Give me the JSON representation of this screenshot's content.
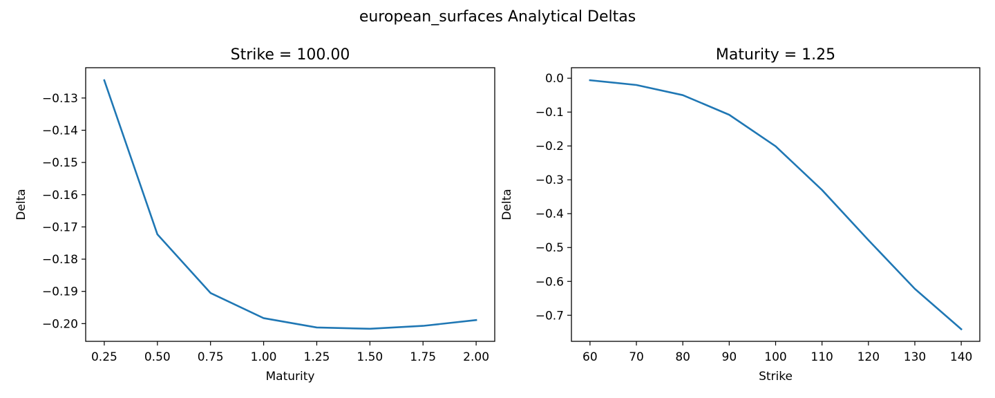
{
  "figure": {
    "suptitle": "european_surfaces Analytical Deltas"
  },
  "colors": {
    "line": "#1f77b4",
    "axes": "#000000",
    "background": "#ffffff"
  },
  "chart_data": [
    {
      "type": "line",
      "title": "Strike = 100.00",
      "xlabel": "Maturity",
      "ylabel": "Delta",
      "x": [
        0.25,
        0.5,
        0.75,
        1.0,
        1.25,
        1.5,
        1.75,
        2.0
      ],
      "series": [
        {
          "values": [
            -0.1245,
            -0.1723,
            -0.1905,
            -0.1983,
            -0.2012,
            -0.2016,
            -0.2007,
            -0.1989
          ]
        }
      ],
      "xlim": [
        0.1625,
        2.0875
      ],
      "ylim": [
        -0.2055,
        -0.1206
      ],
      "xticks": [
        0.25,
        0.5,
        0.75,
        1.0,
        1.25,
        1.5,
        1.75,
        2.0
      ],
      "xtick_labels": [
        "0.25",
        "0.50",
        "0.75",
        "1.00",
        "1.25",
        "1.50",
        "1.75",
        "2.00"
      ],
      "yticks": [
        -0.13,
        -0.14,
        -0.15,
        -0.16,
        -0.17,
        -0.18,
        -0.19,
        -0.2
      ],
      "ytick_labels": [
        "−0.13",
        "−0.14",
        "−0.15",
        "−0.16",
        "−0.17",
        "−0.18",
        "−0.19",
        "−0.20"
      ],
      "grid": false,
      "legend": "none"
    },
    {
      "type": "line",
      "title": "Maturity = 1.25",
      "xlabel": "Strike",
      "ylabel": "Delta",
      "x": [
        60,
        70,
        80,
        90,
        100,
        110,
        120,
        130,
        140
      ],
      "series": [
        {
          "values": [
            -0.006,
            -0.02,
            -0.05,
            -0.108,
            -0.201,
            -0.33,
            -0.478,
            -0.622,
            -0.741
          ]
        }
      ],
      "xlim": [
        56,
        144
      ],
      "ylim": [
        -0.777,
        0.031
      ],
      "xticks": [
        60,
        70,
        80,
        90,
        100,
        110,
        120,
        130,
        140
      ],
      "xtick_labels": [
        "60",
        "70",
        "80",
        "90",
        "100",
        "110",
        "120",
        "130",
        "140"
      ],
      "yticks": [
        0.0,
        -0.1,
        -0.2,
        -0.3,
        -0.4,
        -0.5,
        -0.6,
        -0.7
      ],
      "ytick_labels": [
        "0.0",
        "−0.1",
        "−0.2",
        "−0.3",
        "−0.4",
        "−0.5",
        "−0.6",
        "−0.7"
      ],
      "grid": false,
      "legend": "none"
    }
  ]
}
